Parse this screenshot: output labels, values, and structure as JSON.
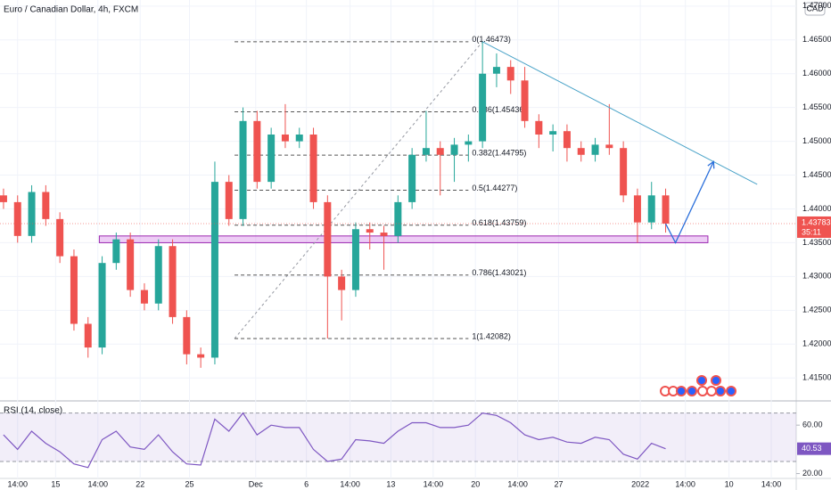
{
  "chart_data": {
    "type": "candlestick",
    "title": "Euro / Canadian Dollar, 4h, FXCM",
    "currency": "CAD",
    "open": [
      1.442,
      1.441,
      1.436,
      1.4425,
      1.4385,
      1.433,
      1.423,
      1.4195,
      1.432,
      1.4355,
      1.428,
      1.426,
      1.4345,
      1.424,
      1.4185,
      1.418,
      1.444,
      1.4385,
      1.453,
      1.444,
      1.451,
      1.45,
      1.451,
      1.441,
      1.43,
      1.428,
      1.437,
      1.4365,
      1.436,
      1.441,
      1.448,
      1.449,
      1.448,
      1.4495,
      1.45,
      1.46,
      1.461,
      1.459,
      1.453,
      1.451,
      1.4515,
      1.449,
      1.448,
      1.4495,
      1.449,
      1.442,
      1.438,
      1.442
    ],
    "high": [
      1.443,
      1.442,
      1.4435,
      1.4435,
      1.4395,
      1.434,
      1.424,
      1.433,
      1.4365,
      1.4365,
      1.429,
      1.4355,
      1.4355,
      1.425,
      1.4195,
      1.447,
      1.445,
      1.455,
      1.4545,
      1.452,
      1.4555,
      1.452,
      1.452,
      1.442,
      1.431,
      1.438,
      1.438,
      1.4375,
      1.442,
      1.449,
      1.4545,
      1.45,
      1.4505,
      1.451,
      1.46473,
      1.463,
      1.462,
      1.461,
      1.454,
      1.4525,
      1.4525,
      1.45,
      1.4505,
      1.4555,
      1.45,
      1.443,
      1.444,
      1.443
    ],
    "low": [
      1.44,
      1.435,
      1.435,
      1.4375,
      1.432,
      1.422,
      1.418,
      1.4185,
      1.431,
      1.427,
      1.425,
      1.425,
      1.423,
      1.417,
      1.4165,
      1.417,
      1.4375,
      1.4375,
      1.443,
      1.443,
      1.449,
      1.449,
      1.44,
      1.42082,
      1.4235,
      1.427,
      1.434,
      1.431,
      1.435,
      1.44,
      1.447,
      1.442,
      1.444,
      1.447,
      1.449,
      1.458,
      1.457,
      1.452,
      1.449,
      1.4485,
      1.447,
      1.447,
      1.447,
      1.448,
      1.441,
      1.435,
      1.437,
      1.4365
    ],
    "close": [
      1.441,
      1.436,
      1.4425,
      1.4385,
      1.433,
      1.423,
      1.4195,
      1.432,
      1.4355,
      1.428,
      1.426,
      1.4345,
      1.424,
      1.4185,
      1.418,
      1.444,
      1.4385,
      1.453,
      1.444,
      1.451,
      1.45,
      1.451,
      1.441,
      1.43,
      1.428,
      1.437,
      1.4365,
      1.436,
      1.441,
      1.448,
      1.449,
      1.448,
      1.4495,
      1.45,
      1.46,
      1.461,
      1.459,
      1.453,
      1.451,
      1.4515,
      1.449,
      1.448,
      1.4495,
      1.449,
      1.442,
      1.438,
      1.442,
      1.43783
    ],
    "colors": {
      "up": "#26a69a",
      "down": "#ef5350"
    },
    "grid": true,
    "xlim": [
      -0.25,
      56.27
    ],
    "xticks": [
      {
        "value": 1.0,
        "label": "14:00"
      },
      {
        "value": 3.7,
        "label": "15"
      },
      {
        "value": 6.7,
        "label": "14:00"
      },
      {
        "value": 9.7,
        "label": "22"
      },
      {
        "value": 13.2,
        "label": "25"
      },
      {
        "value": 17.9,
        "label": "Dec"
      },
      {
        "value": 21.5,
        "label": "6"
      },
      {
        "value": 24.6,
        "label": "14:00"
      },
      {
        "value": 27.5,
        "label": "13"
      },
      {
        "value": 30.5,
        "label": "14:00"
      },
      {
        "value": 33.5,
        "label": "20"
      },
      {
        "value": 36.5,
        "label": "14:00"
      },
      {
        "value": 39.4,
        "label": "27"
      },
      {
        "value": 45.2,
        "label": "2022"
      },
      {
        "value": 48.4,
        "label": "14:00"
      },
      {
        "value": 51.5,
        "label": "10"
      },
      {
        "value": 54.5,
        "label": "14:00"
      }
    ],
    "ylim": [
      1.4116,
      1.4709
    ],
    "yticks": [
      {
        "value": 1.415,
        "label": "1.41500"
      },
      {
        "value": 1.42,
        "label": "1.42000"
      },
      {
        "value": 1.425,
        "label": "1.42500"
      },
      {
        "value": 1.43,
        "label": "1.43000"
      },
      {
        "value": 1.435,
        "label": "1.43500"
      },
      {
        "value": 1.44,
        "label": "1.44000"
      },
      {
        "value": 1.445,
        "label": "1.44500"
      },
      {
        "value": 1.45,
        "label": "1.45000"
      },
      {
        "value": 1.455,
        "label": "1.45500"
      },
      {
        "value": 1.46,
        "label": "1.46000"
      },
      {
        "value": 1.465,
        "label": "1.46500"
      },
      {
        "value": 1.47,
        "label": "1.47000"
      }
    ],
    "countdown": "35:11",
    "fib": {
      "x": [
        16.4,
        33.0
      ],
      "diagonal_y": [
        1.42082,
        1.46473
      ],
      "levels": [
        {
          "label": "0(1.46473)",
          "value": 1.46473
        },
        {
          "label": "0.236(1.45436)",
          "value": 1.45436
        },
        {
          "label": "0.382(1.44795)",
          "value": 1.44795
        },
        {
          "label": "0.5(1.44277)",
          "value": 1.44277
        },
        {
          "label": "0.618(1.43759)",
          "value": 1.43759
        },
        {
          "label": "0.786(1.43021)",
          "value": 1.43021
        },
        {
          "label": "1(1.42082)",
          "value": 1.42082
        }
      ]
    },
    "trendline": {
      "x": [
        34,
        53.5
      ],
      "y": [
        1.46473,
        1.44363
      ],
      "color": "#4aa3c8"
    },
    "projection": {
      "x": [
        47,
        47.7,
        50.4
      ],
      "y": [
        1.43783,
        1.435,
        1.447
      ],
      "color": "#2a6fdb"
    },
    "zone": {
      "x": [
        6.8,
        50
      ],
      "y": [
        1.435,
        1.436
      ],
      "color": "#d88ee8"
    },
    "rsi": {
      "title": "RSI (14, close)",
      "color": "#7e57c2",
      "values": [
        52,
        40,
        55,
        45,
        38,
        28,
        25,
        48,
        55,
        42,
        40,
        52,
        38,
        28,
        27,
        65,
        55,
        70,
        52,
        60,
        58,
        58,
        40,
        30,
        32,
        48,
        47,
        45,
        55,
        62,
        62,
        58,
        58,
        60,
        70,
        68,
        62,
        52,
        48,
        50,
        46,
        45,
        50,
        48,
        36,
        32,
        45,
        40.53
      ],
      "ylim": [
        16,
        80
      ],
      "yticks": [
        {
          "value": 60,
          "label": "60.00"
        },
        {
          "value": 20,
          "label": "20.00"
        }
      ],
      "bands": [
        70,
        30
      ]
    }
  }
}
